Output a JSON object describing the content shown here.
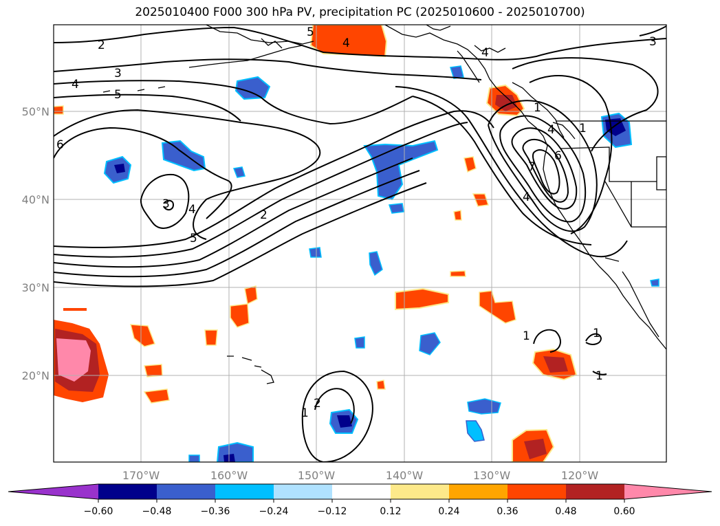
{
  "title": "2025010400 F000 300 hPa PV, precipitation PC (2025010600 - 2025010700)",
  "map": {
    "lat_labels": [
      "50°N",
      "40°N",
      "30°N",
      "20°N"
    ],
    "lon_labels": [
      "170°W",
      "160°W",
      "150°W",
      "140°W",
      "130°W",
      "120°W"
    ],
    "contour_labels": [
      "2",
      "3",
      "4",
      "5",
      "6",
      "3",
      "4",
      "5",
      "2",
      "6",
      "7",
      "4",
      "1",
      "1",
      "1",
      "1",
      "2",
      "1",
      "5",
      "4",
      "3",
      "4",
      "1",
      "4"
    ],
    "colors": {
      "land_line": "#000000",
      "grid": "#b0b0b0",
      "contour": "#000000"
    }
  },
  "colorbar": {
    "ticks": [
      "−0.60",
      "−0.48",
      "−0.36",
      "−0.24",
      "−0.12",
      "0.12",
      "0.24",
      "0.36",
      "0.48",
      "0.60"
    ],
    "colors": [
      "#9932cc",
      "#00008b",
      "#3a5fcd",
      "#00bfff",
      "#b0e2ff",
      "#ffffff",
      "#fde98a",
      "#ffa500",
      "#ff4500",
      "#b22222",
      "#ff88aa"
    ]
  }
}
